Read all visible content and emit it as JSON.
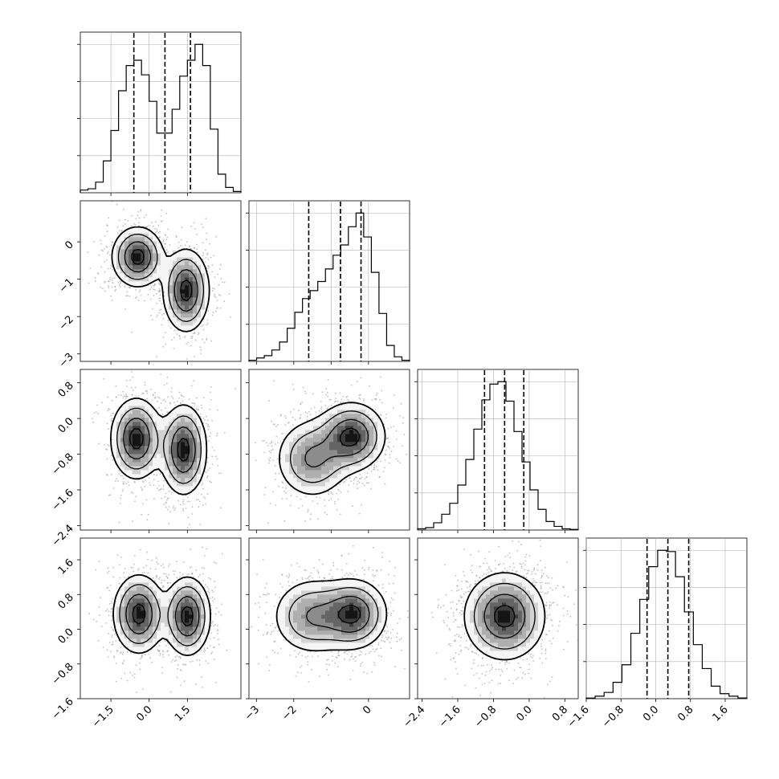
{
  "chart_data": {
    "type": "corner",
    "dimensions": 4,
    "axes": [
      {
        "name": "",
        "range": [
          -2.7,
          3.6
        ],
        "ticks": [
          -1.5,
          0.0,
          1.5
        ],
        "tick_labels": [
          "−1.5",
          "0.0",
          "1.5"
        ]
      },
      {
        "name": "",
        "range": [
          -3.2,
          1.1
        ],
        "ticks": [
          -3,
          -2,
          -1,
          0
        ],
        "tick_labels": [
          "−3",
          "−2",
          "−1",
          "0"
        ]
      },
      {
        "name": "",
        "range": [
          -2.5,
          1.1
        ],
        "ticks": [
          -2.4,
          -1.6,
          -0.8,
          0.0,
          0.8
        ],
        "tick_labels": [
          "−2.4",
          "−1.6",
          "−0.8",
          "0.0",
          "0.8"
        ]
      },
      {
        "name": "",
        "range": [
          -1.6,
          2.1
        ],
        "ticks": [
          -1.6,
          -0.8,
          0.0,
          0.8,
          1.6
        ],
        "tick_labels": [
          "−1.6",
          "−0.8",
          "0.0",
          "0.8",
          "1.6"
        ]
      }
    ],
    "quantiles": [
      {
        "dim": 0,
        "values": [
          -0.6,
          0.62,
          1.62
        ]
      },
      {
        "dim": 1,
        "values": [
          -1.6,
          -0.75,
          -0.2
        ]
      },
      {
        "dim": 2,
        "values": [
          -1.0,
          -0.55,
          -0.12
        ]
      },
      {
        "dim": 3,
        "values": [
          -0.2,
          0.28,
          0.76
        ]
      }
    ],
    "histograms": [
      {
        "dim": 0,
        "bin_edges_range": [
          -2.7,
          3.6
        ],
        "counts": [
          0.02,
          0.03,
          0.08,
          0.24,
          0.47,
          0.77,
          0.96,
          1.0,
          0.89,
          0.69,
          0.45,
          0.45,
          0.63,
          0.88,
          1.0,
          1.12,
          0.96,
          0.48,
          0.14,
          0.04,
          0.01
        ]
      },
      {
        "dim": 1,
        "bin_edges_range": [
          -3.2,
          1.1
        ],
        "counts": [
          0.01,
          0.03,
          0.05,
          0.1,
          0.17,
          0.29,
          0.43,
          0.55,
          0.62,
          0.7,
          0.81,
          0.93,
          1.02,
          1.18,
          1.3,
          1.09,
          0.78,
          0.42,
          0.14,
          0.04,
          0.01
        ]
      },
      {
        "dim": 2,
        "bin_edges_range": [
          -2.5,
          1.1
        ],
        "counts": [
          0.01,
          0.02,
          0.06,
          0.13,
          0.22,
          0.37,
          0.58,
          0.83,
          1.07,
          1.2,
          1.22,
          1.06,
          0.81,
          0.56,
          0.33,
          0.17,
          0.07,
          0.03,
          0.01,
          0.005
        ]
      },
      {
        "dim": 3,
        "bin_edges_range": [
          -1.6,
          2.1
        ],
        "counts": [
          0.005,
          0.02,
          0.05,
          0.13,
          0.27,
          0.52,
          0.79,
          1.05,
          1.18,
          1.17,
          0.97,
          0.69,
          0.43,
          0.24,
          0.1,
          0.04,
          0.02,
          0.006
        ]
      }
    ],
    "pairs": [
      {
        "x_dim": 0,
        "y_dim": 1,
        "modes": [
          {
            "x": -0.45,
            "y": -0.4,
            "sx": 0.5,
            "sy": 0.4,
            "w": 0.5
          },
          {
            "x": 1.45,
            "y": -1.3,
            "sx": 0.45,
            "sy": 0.55,
            "w": 0.5
          }
        ]
      },
      {
        "x_dim": 0,
        "y_dim": 2,
        "modes": [
          {
            "x": -0.5,
            "y": -0.45,
            "sx": 0.5,
            "sy": 0.45,
            "w": 0.5
          },
          {
            "x": 1.35,
            "y": -0.7,
            "sx": 0.45,
            "sy": 0.5,
            "w": 0.5
          }
        ]
      },
      {
        "x_dim": 0,
        "y_dim": 3,
        "modes": [
          {
            "x": -0.4,
            "y": 0.35,
            "sx": 0.5,
            "sy": 0.45,
            "w": 0.5
          },
          {
            "x": 1.5,
            "y": 0.3,
            "sx": 0.45,
            "sy": 0.45,
            "w": 0.5
          }
        ]
      },
      {
        "x_dim": 1,
        "y_dim": 2,
        "modes": [
          {
            "x": -0.45,
            "y": -0.4,
            "sx": 0.45,
            "sy": 0.38,
            "w": 0.6
          },
          {
            "x": -1.5,
            "y": -0.9,
            "sx": 0.5,
            "sy": 0.45,
            "w": 0.4
          }
        ]
      },
      {
        "x_dim": 1,
        "y_dim": 3,
        "modes": [
          {
            "x": -0.4,
            "y": 0.35,
            "sx": 0.45,
            "sy": 0.4,
            "w": 0.6
          },
          {
            "x": -1.5,
            "y": 0.3,
            "sx": 0.55,
            "sy": 0.45,
            "w": 0.4
          }
        ]
      },
      {
        "x_dim": 2,
        "y_dim": 3,
        "modes": [
          {
            "x": -0.55,
            "y": 0.3,
            "sx": 0.45,
            "sy": 0.5,
            "w": 1.0
          }
        ]
      }
    ],
    "grid": true,
    "title": "",
    "color": "#000000"
  }
}
